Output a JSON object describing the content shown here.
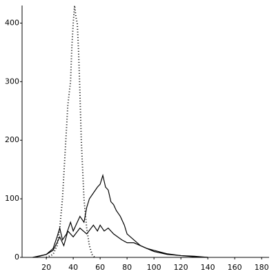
{
  "chart_data": {
    "type": "line",
    "xlim": [
      2,
      184
    ],
    "ylim": [
      0,
      430
    ],
    "xticks": [
      20,
      40,
      60,
      80,
      100,
      120,
      140,
      160,
      180
    ],
    "yticks": [
      0,
      100,
      200,
      300,
      400
    ],
    "series": [
      {
        "color": "#000000",
        "style": "dotted",
        "x": [
          20,
          25,
          28,
          30,
          32,
          34,
          36,
          38,
          39,
          40,
          41,
          42,
          43,
          44,
          45,
          46,
          47,
          48,
          50,
          52,
          54,
          56
        ],
        "values": [
          0,
          5,
          20,
          50,
          100,
          180,
          260,
          300,
          360,
          400,
          430,
          410,
          400,
          350,
          280,
          200,
          150,
          100,
          50,
          20,
          5,
          0
        ]
      },
      {
        "color": "#000000",
        "style": "solid",
        "x": [
          10,
          15,
          20,
          25,
          28,
          30,
          32,
          35,
          38,
          40,
          42,
          45,
          48,
          50,
          52,
          55,
          58,
          60,
          62,
          64,
          66,
          68,
          70,
          72,
          75,
          78,
          80,
          85,
          90,
          95,
          100,
          110,
          120,
          130,
          140
        ],
        "values": [
          0,
          2,
          5,
          15,
          35,
          50,
          30,
          40,
          60,
          45,
          55,
          70,
          60,
          85,
          100,
          110,
          120,
          125,
          140,
          120,
          115,
          95,
          90,
          80,
          70,
          55,
          40,
          30,
          20,
          15,
          10,
          5,
          3,
          2,
          0
        ]
      },
      {
        "color": "#000000",
        "style": "solid",
        "x": [
          10,
          20,
          25,
          28,
          30,
          33,
          36,
          40,
          45,
          50,
          55,
          58,
          60,
          63,
          66,
          70,
          73,
          76,
          80,
          85,
          90,
          95,
          100,
          110,
          120,
          130,
          140
        ],
        "values": [
          0,
          5,
          12,
          25,
          35,
          20,
          45,
          35,
          50,
          40,
          55,
          45,
          55,
          45,
          50,
          40,
          35,
          30,
          25,
          25,
          20,
          15,
          12,
          6,
          3,
          1,
          0
        ]
      }
    ]
  }
}
